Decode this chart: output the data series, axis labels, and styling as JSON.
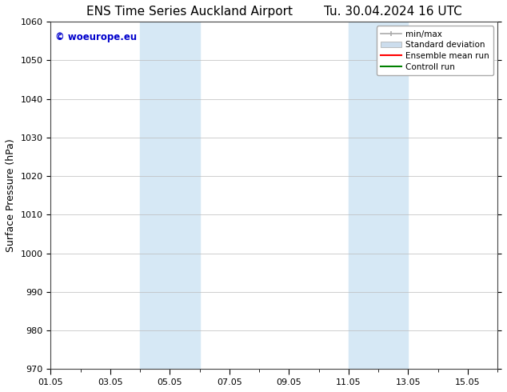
{
  "title_left": "ENS Time Series Auckland Airport",
  "title_right": "Tu. 30.04.2024 16 UTC",
  "ylabel": "Surface Pressure (hPa)",
  "ymin": 970,
  "ymax": 1060,
  "ytick_step": 10,
  "xtick_labels": [
    "01.05",
    "03.05",
    "05.05",
    "07.05",
    "09.05",
    "11.05",
    "13.05",
    "15.05"
  ],
  "xtick_positions_days": [
    0,
    2,
    4,
    6,
    8,
    10,
    12,
    14
  ],
  "xlim_days": [
    0,
    15
  ],
  "shaded_bands": [
    {
      "start_day": 3.0,
      "end_day": 5.0
    },
    {
      "start_day": 10.0,
      "end_day": 12.0
    }
  ],
  "band_color": "#d6e8f5",
  "background_color": "#ffffff",
  "watermark_text": "© woeurope.eu",
  "watermark_color": "#0000cc",
  "legend_items": [
    {
      "label": "min/max",
      "color": "#aaaaaa",
      "lw": 1.5
    },
    {
      "label": "Standard deviation",
      "color": "#ccdded",
      "lw": 8
    },
    {
      "label": "Ensemble mean run",
      "color": "#ff0000",
      "lw": 1.5
    },
    {
      "label": "Controll run",
      "color": "#008000",
      "lw": 1.5
    }
  ],
  "grid_color": "#bbbbbb",
  "tick_label_fontsize": 8,
  "axis_label_fontsize": 9,
  "title_fontsize": 11,
  "fig_width": 6.34,
  "fig_height": 4.9,
  "dpi": 100
}
